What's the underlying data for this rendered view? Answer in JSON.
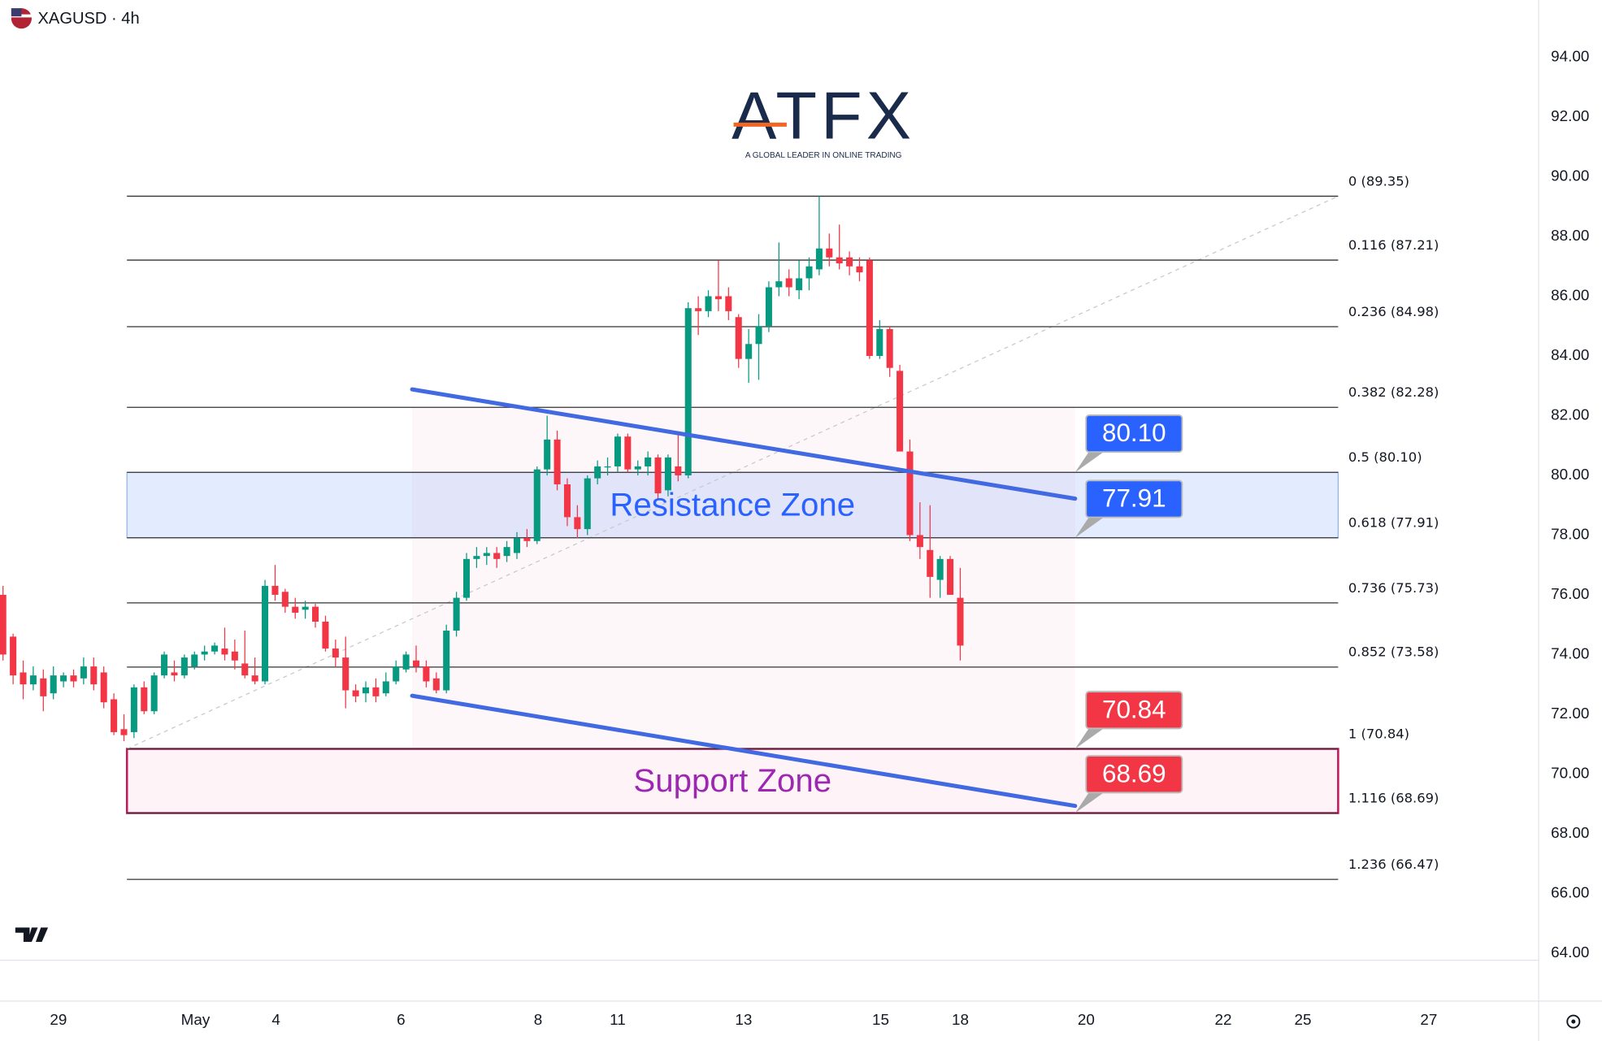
{
  "chart_data": {
    "type": "candlestick",
    "title": "XAGUSD · 4h",
    "logo": "ATFX",
    "logo_tagline": "A GLOBAL LEADER IN ONLINE TRADING",
    "up_color": "#089981",
    "down_color": "#f23645",
    "candles": [
      [
        76.0,
        76.3,
        73.8,
        74.0
      ],
      [
        74.6,
        74.7,
        73.0,
        73.3
      ],
      [
        73.4,
        73.8,
        72.5,
        73.0
      ],
      [
        73.0,
        73.6,
        72.8,
        73.3
      ],
      [
        73.2,
        73.5,
        72.1,
        72.6
      ],
      [
        72.7,
        73.6,
        72.5,
        73.3
      ],
      [
        73.1,
        73.4,
        72.9,
        73.3
      ],
      [
        73.3,
        73.5,
        72.9,
        73.1
      ],
      [
        73.2,
        73.9,
        73.0,
        73.6
      ],
      [
        73.6,
        73.9,
        72.8,
        73.0
      ],
      [
        73.4,
        73.6,
        72.2,
        72.4
      ],
      [
        72.5,
        72.7,
        71.3,
        71.4
      ],
      [
        71.5,
        72.0,
        71.1,
        71.3
      ],
      [
        71.4,
        73.0,
        71.2,
        72.9
      ],
      [
        72.9,
        73.1,
        72.0,
        72.1
      ],
      [
        72.1,
        73.4,
        72.0,
        73.3
      ],
      [
        73.3,
        74.1,
        73.2,
        74.0
      ],
      [
        73.4,
        73.8,
        73.1,
        73.3
      ],
      [
        73.3,
        74.0,
        73.2,
        73.9
      ],
      [
        73.6,
        74.1,
        73.5,
        74.0
      ],
      [
        74.0,
        74.3,
        73.8,
        74.1
      ],
      [
        74.1,
        74.4,
        74.0,
        74.3
      ],
      [
        74.2,
        74.9,
        73.8,
        74.0
      ],
      [
        74.1,
        74.5,
        73.5,
        73.8
      ],
      [
        73.7,
        74.8,
        73.2,
        73.3
      ],
      [
        73.3,
        73.9,
        73.0,
        73.1
      ],
      [
        73.1,
        76.5,
        73.0,
        76.3
      ],
      [
        76.3,
        77.0,
        75.8,
        76.0
      ],
      [
        76.1,
        76.2,
        75.4,
        75.6
      ],
      [
        75.6,
        75.9,
        75.2,
        75.4
      ],
      [
        75.5,
        75.8,
        75.2,
        75.6
      ],
      [
        75.6,
        75.7,
        74.9,
        75.1
      ],
      [
        75.1,
        75.3,
        74.1,
        74.2
      ],
      [
        74.2,
        74.5,
        73.6,
        73.9
      ],
      [
        73.9,
        74.6,
        72.2,
        72.8
      ],
      [
        72.8,
        73.0,
        72.4,
        72.6
      ],
      [
        72.7,
        73.1,
        72.4,
        72.9
      ],
      [
        72.9,
        73.2,
        72.4,
        72.6
      ],
      [
        72.7,
        73.4,
        72.6,
        73.1
      ],
      [
        73.1,
        73.8,
        73.0,
        73.6
      ],
      [
        73.5,
        74.1,
        73.4,
        74.0
      ],
      [
        73.8,
        74.3,
        73.4,
        73.6
      ],
      [
        73.6,
        73.8,
        72.9,
        73.1
      ],
      [
        73.2,
        73.4,
        72.7,
        72.8
      ],
      [
        72.8,
        75.0,
        72.7,
        74.8
      ],
      [
        74.8,
        76.1,
        74.6,
        75.9
      ],
      [
        75.9,
        77.4,
        75.8,
        77.2
      ],
      [
        77.2,
        77.6,
        76.9,
        77.3
      ],
      [
        77.3,
        77.6,
        77.0,
        77.4
      ],
      [
        77.4,
        77.6,
        76.9,
        77.2
      ],
      [
        77.3,
        77.8,
        77.1,
        77.6
      ],
      [
        77.4,
        78.1,
        77.2,
        77.9
      ],
      [
        77.9,
        78.2,
        77.6,
        77.8
      ],
      [
        77.8,
        80.3,
        77.7,
        80.2
      ],
      [
        80.2,
        82.0,
        80.0,
        81.2
      ],
      [
        81.2,
        81.5,
        79.5,
        79.7
      ],
      [
        79.7,
        79.9,
        78.3,
        78.6
      ],
      [
        78.6,
        79.0,
        77.9,
        78.2
      ],
      [
        78.2,
        80.0,
        78.0,
        79.9
      ],
      [
        79.9,
        80.5,
        79.7,
        80.3
      ],
      [
        80.3,
        80.6,
        80.0,
        80.3
      ],
      [
        80.3,
        81.4,
        80.1,
        81.3
      ],
      [
        81.3,
        81.4,
        80.1,
        80.2
      ],
      [
        80.2,
        80.5,
        80.0,
        80.3
      ],
      [
        80.3,
        80.8,
        80.0,
        80.6
      ],
      [
        80.6,
        80.7,
        79.2,
        79.4
      ],
      [
        79.5,
        80.7,
        79.3,
        80.6
      ],
      [
        80.3,
        81.4,
        79.8,
        80.0
      ],
      [
        80.0,
        85.8,
        79.9,
        85.6
      ],
      [
        85.6,
        86.0,
        84.7,
        85.5
      ],
      [
        85.5,
        86.2,
        85.3,
        86.0
      ],
      [
        86.0,
        87.2,
        85.5,
        85.9
      ],
      [
        86.0,
        86.3,
        85.2,
        85.5
      ],
      [
        85.3,
        85.4,
        83.6,
        83.9
      ],
      [
        83.9,
        84.9,
        83.1,
        84.4
      ],
      [
        84.4,
        85.4,
        83.2,
        85.0
      ],
      [
        85.0,
        86.5,
        84.8,
        86.3
      ],
      [
        86.3,
        87.8,
        86.0,
        86.5
      ],
      [
        86.6,
        86.9,
        86.0,
        86.3
      ],
      [
        86.2,
        87.2,
        85.9,
        86.6
      ],
      [
        86.6,
        87.3,
        86.2,
        87.0
      ],
      [
        86.9,
        89.35,
        86.7,
        87.6
      ],
      [
        87.6,
        88.1,
        87.0,
        87.3
      ],
      [
        87.3,
        88.4,
        86.9,
        87.1
      ],
      [
        87.3,
        87.5,
        86.7,
        87.0
      ],
      [
        87.0,
        87.3,
        86.5,
        86.8
      ],
      [
        87.2,
        87.3,
        83.9,
        84.0
      ],
      [
        84.0,
        85.2,
        83.9,
        84.9
      ],
      [
        84.9,
        85.0,
        83.3,
        83.6
      ],
      [
        83.5,
        83.7,
        80.8,
        80.8
      ],
      [
        80.8,
        81.2,
        77.8,
        78.0
      ],
      [
        78.0,
        79.1,
        77.2,
        77.6
      ],
      [
        77.5,
        79.0,
        75.9,
        76.6
      ],
      [
        76.5,
        77.3,
        75.9,
        77.2
      ],
      [
        77.2,
        77.3,
        76.0,
        76.0
      ],
      [
        75.9,
        76.9,
        73.8,
        74.3
      ]
    ],
    "xlim": [
      -0.3,
      152.4
    ],
    "ylim": [
      63.76,
      95.92
    ],
    "xticks": [
      {
        "value": 5.5,
        "label": "29"
      },
      {
        "value": 19.1,
        "label": "May"
      },
      {
        "value": 27.1,
        "label": "4"
      },
      {
        "value": 39.5,
        "label": "6"
      },
      {
        "value": 53.1,
        "label": "8"
      },
      {
        "value": 61,
        "label": "11"
      },
      {
        "value": 73.5,
        "label": "13"
      },
      {
        "value": 87.1,
        "label": "15"
      },
      {
        "value": 95,
        "label": "18"
      },
      {
        "value": 107.5,
        "label": "20"
      },
      {
        "value": 121.1,
        "label": "22"
      },
      {
        "value": 129,
        "label": "25"
      },
      {
        "value": 141.5,
        "label": "27"
      }
    ],
    "yticks": [
      {
        "value": 64,
        "label": "64.00"
      },
      {
        "value": 66,
        "label": "66.00"
      },
      {
        "value": 68,
        "label": "68.00"
      },
      {
        "value": 70,
        "label": "70.00"
      },
      {
        "value": 72,
        "label": "72.00"
      },
      {
        "value": 74,
        "label": "74.00"
      },
      {
        "value": 76,
        "label": "76.00"
      },
      {
        "value": 78,
        "label": "78.00"
      },
      {
        "value": 80,
        "label": "80.00"
      },
      {
        "value": 82,
        "label": "82.00"
      },
      {
        "value": 84,
        "label": "84.00"
      },
      {
        "value": 86,
        "label": "86.00"
      },
      {
        "value": 88,
        "label": "88.00"
      },
      {
        "value": 90,
        "label": "90.00"
      },
      {
        "value": 92,
        "label": "92.00"
      },
      {
        "value": 94,
        "label": "94.00"
      }
    ],
    "grid": true,
    "fib_levels": [
      {
        "label": "0 (89.35)",
        "value": 89.35
      },
      {
        "label": "0.116 (87.21)",
        "value": 87.21
      },
      {
        "label": "0.236 (84.98)",
        "value": 84.98
      },
      {
        "label": "0.382 (82.28)",
        "value": 82.28
      },
      {
        "label": "0.5 (80.10)",
        "value": 80.1
      },
      {
        "label": "0.618 (77.91)",
        "value": 77.91
      },
      {
        "label": "0.736 (75.73)",
        "value": 75.73
      },
      {
        "label": "0.852 (73.58)",
        "value": 73.58
      },
      {
        "label": "1 (70.84)",
        "value": 70.84
      },
      {
        "label": "1.116 (68.69)",
        "value": 68.69
      },
      {
        "label": "1.236 (66.47)",
        "value": 66.47
      }
    ],
    "zones": [
      {
        "label": "Resistance Zone",
        "low": 77.91,
        "high": 80.1,
        "color": "#2962ff"
      },
      {
        "label": "Support Zone",
        "low": 68.69,
        "high": 70.84,
        "color": "#9c27b0"
      }
    ],
    "trend_lines": [
      {
        "x_start": 40.6,
        "x_end": 106.4,
        "start": 82.88,
        "end": 79.22,
        "color": "#4169e1"
      },
      {
        "x_start": 40.6,
        "x_end": 106.4,
        "start": 72.62,
        "end": 68.93,
        "color": "#4169e1"
      }
    ],
    "price_tags": [
      {
        "label": "80.10",
        "value": 80.1,
        "color": "#2962ff"
      },
      {
        "label": "77.91",
        "value": 77.91,
        "color": "#2962ff"
      },
      {
        "label": "70.84",
        "value": 70.84,
        "color": "#f23645"
      },
      {
        "label": "68.69",
        "value": 68.69,
        "color": "#f23645"
      }
    ]
  }
}
